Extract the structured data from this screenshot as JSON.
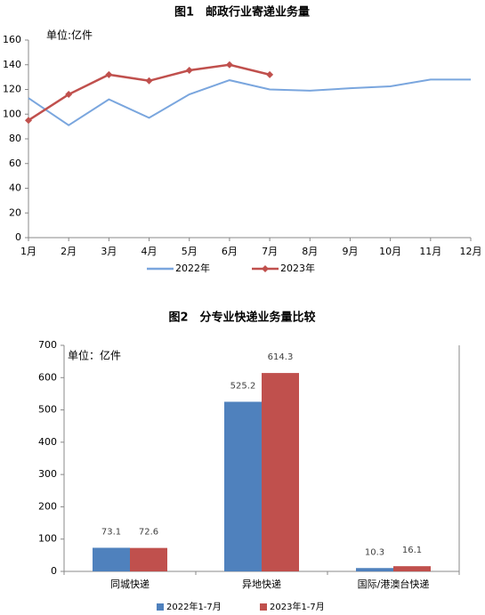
{
  "chart_data": [
    {
      "type": "line",
      "title": "图1　邮政行业寄递业务量",
      "unit_label": "单位:亿件",
      "categories": [
        "1月",
        "2月",
        "3月",
        "4月",
        "5月",
        "6月",
        "7月",
        "8月",
        "9月",
        "10月",
        "11月",
        "12月"
      ],
      "series": [
        {
          "name": "2022年",
          "color": "#7aa6de",
          "values": [
            113,
            91,
            112,
            97,
            116,
            127.5,
            120,
            119,
            121,
            122.5,
            128,
            128
          ]
        },
        {
          "name": "2023年",
          "color": "#c0504d",
          "values": [
            95,
            116,
            132,
            127,
            135.5,
            140,
            132,
            null,
            null,
            null,
            null,
            null
          ]
        }
      ],
      "ylim": [
        0,
        160
      ],
      "yticks": [
        0,
        20,
        40,
        60,
        80,
        100,
        120,
        140,
        160
      ],
      "grid": false,
      "legend": "bottom"
    },
    {
      "type": "bar",
      "title": "图2　分专业快递业务量比较",
      "unit_label": "单位：亿件",
      "categories": [
        "同城快递",
        "异地快递",
        "国际/港澳台快递"
      ],
      "series": [
        {
          "name": "2022年1-7月",
          "color": "#4f81bd",
          "values": [
            73.1,
            525.2,
            10.3
          ]
        },
        {
          "name": "2023年1-7月",
          "color": "#c0504d",
          "values": [
            72.6,
            614.3,
            16.1
          ]
        }
      ],
      "ylim": [
        0,
        700
      ],
      "yticks": [
        0,
        100,
        200,
        300,
        400,
        500,
        600,
        700
      ],
      "grid": false,
      "legend": "bottom"
    }
  ]
}
